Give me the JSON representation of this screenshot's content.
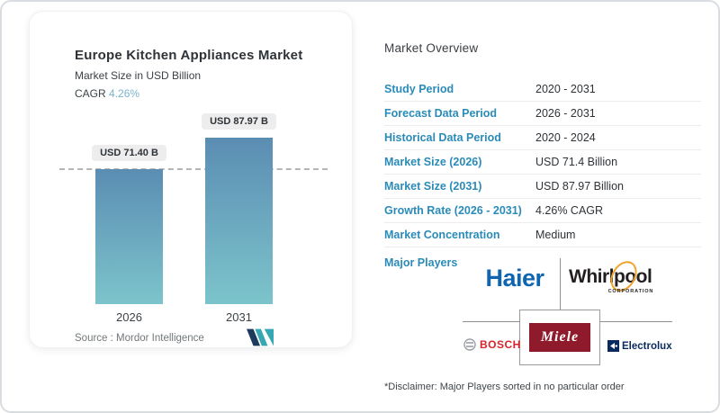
{
  "colors": {
    "accent_label_blue": "#2a8bb9",
    "cagr_value_blue": "#7ab3cb",
    "bar_gradient_top": "#5b8db3",
    "bar_gradient_bottom": "#7cc4cb",
    "haier_blue": "#1065b0",
    "whirlpool_black": "#231f20",
    "whirlpool_gold": "#f0a32a",
    "bosch_red": "#d8232a",
    "miele_red": "#8e1a2b",
    "electrolux_navy": "#0a2a5e"
  },
  "left_card": {
    "title": "Europe Kitchen Appliances Market",
    "subtitle": "Market Size in USD Billion",
    "cagr_label": "CAGR",
    "cagr_value": "4.26%",
    "source_label": "Source :",
    "source_value": "Mordor Intelligence"
  },
  "chart_data": {
    "type": "bar",
    "title": "Europe Kitchen Appliances Market",
    "ylabel": "Market Size in USD Billion",
    "categories": [
      "2026",
      "2031"
    ],
    "values": [
      71.4,
      87.97
    ],
    "bar_labels": [
      "USD 71.40 B",
      "USD 87.97 B"
    ],
    "cagr_percent": 4.26,
    "reference_line": {
      "at_value": 71.4,
      "style": "dashed"
    },
    "grid": false,
    "legend": false
  },
  "overview": {
    "heading": "Market Overview",
    "rows": [
      {
        "label": "Study Period",
        "value": "2020 - 2031"
      },
      {
        "label": "Forecast Data Period",
        "value": "2026 - 2031"
      },
      {
        "label": "Historical Data Period",
        "value": "2020 - 2024"
      },
      {
        "label": "Market Size (2026)",
        "value": "USD 71.4 Billion"
      },
      {
        "label": "Market Size (2031)",
        "value": "USD 87.97 Billion"
      },
      {
        "label": "Growth Rate (2026 - 2031)",
        "value": "4.26% CAGR"
      },
      {
        "label": "Market Concentration",
        "value": "Medium"
      }
    ],
    "major_players_label": "Major Players",
    "players": [
      {
        "name": "Haier"
      },
      {
        "name": "Whirlpool",
        "sub": "CORPORATION"
      },
      {
        "name": "BOSCH"
      },
      {
        "name": "Miele"
      },
      {
        "name": "Electrolux"
      }
    ],
    "disclaimer": "*Disclaimer: Major Players sorted in no particular order"
  }
}
